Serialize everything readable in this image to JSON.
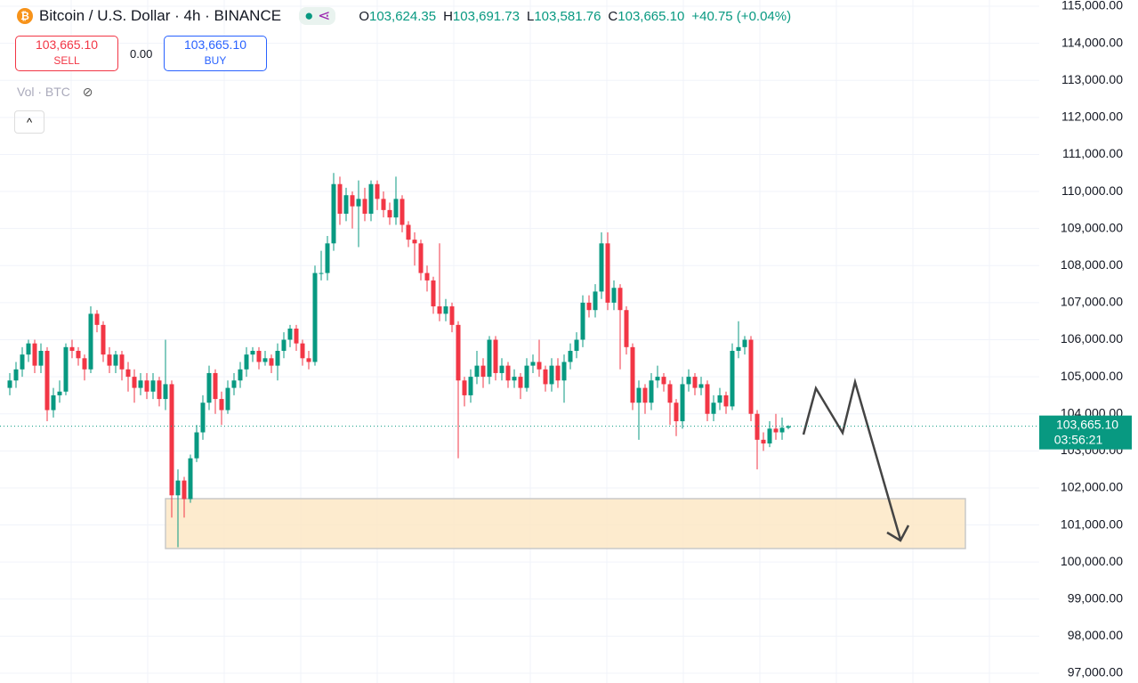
{
  "header": {
    "title": "Bitcoin / U.S. Dollar · 4h · BINANCE",
    "ohlc": [
      {
        "key": "O",
        "value": "103,624.35"
      },
      {
        "key": "H",
        "value": "103,691.73"
      },
      {
        "key": "L",
        "value": "103,581.76"
      },
      {
        "key": "C",
        "value": "103,665.10"
      }
    ],
    "change": "+40.75 (+0.04%)"
  },
  "sell": {
    "price": "103,665.10",
    "label": "SELL"
  },
  "spread": "0.00",
  "buy": {
    "price": "103,665.10",
    "label": "BUY"
  },
  "volume_label": "Vol · BTC",
  "chart_data": {
    "type": "candlestick",
    "up_color": "#089981",
    "down_color": "#f23645",
    "open": [
      104700,
      104900,
      105200,
      105600,
      105900,
      105300,
      105700,
      104100,
      104500,
      104600,
      105800,
      105700,
      105500,
      105200,
      106700,
      106400,
      105600,
      105300,
      105600,
      105200,
      105000,
      104700,
      104900,
      104600,
      104900,
      104400,
      104800,
      101800,
      102200,
      101700,
      102800,
      103500,
      104300,
      105100,
      104400,
      104100,
      104700,
      104900,
      105200,
      105600,
      105700,
      105400,
      105500,
      105300,
      105700,
      106000,
      106300,
      105900,
      105500,
      105400,
      107800,
      107800,
      108600,
      110200,
      109400,
      109900,
      109600,
      109800,
      109400,
      110200,
      109800,
      109500,
      109300,
      109800,
      109100,
      108700,
      108600,
      107800,
      107600,
      106900,
      106700,
      106900,
      106400,
      104900,
      104500,
      105000,
      105300,
      105000,
      106000,
      105100,
      105300,
      104900,
      105000,
      104700,
      105300,
      105400,
      105200,
      104800,
      105300,
      104900,
      105400,
      105700,
      106000,
      107000,
      106800,
      107300,
      108600,
      107000,
      107400,
      106800,
      105800,
      104300,
      104700,
      104300,
      104900,
      105000,
      104800,
      104300,
      103800,
      104800,
      105000,
      104700,
      104800,
      104000,
      104300,
      104500,
      104200,
      105700,
      105800,
      106000,
      104000,
      103300,
      103200,
      103600,
      103500,
      103624.35
    ],
    "high": [
      105100,
      105400,
      105800,
      106000,
      106000,
      105900,
      105800,
      104700,
      104900,
      105900,
      106000,
      105800,
      105600,
      106900,
      106800,
      106500,
      105800,
      105700,
      105700,
      105400,
      105200,
      105100,
      105100,
      105100,
      105000,
      106000,
      104900,
      102500,
      102300,
      102900,
      103700,
      104500,
      105300,
      105200,
      104600,
      104900,
      105100,
      105400,
      105800,
      105800,
      105800,
      105700,
      105600,
      105900,
      106200,
      106400,
      106400,
      106000,
      105700,
      108000,
      108400,
      108800,
      110500,
      110400,
      110100,
      110000,
      110300,
      110100,
      110300,
      110300,
      110000,
      109700,
      110400,
      109900,
      109200,
      108900,
      108700,
      108000,
      107700,
      108600,
      107100,
      107000,
      106500,
      105000,
      105200,
      105700,
      105500,
      106100,
      106100,
      105500,
      105400,
      105200,
      105100,
      105500,
      105600,
      106000,
      105300,
      105500,
      105500,
      105600,
      105900,
      106200,
      107200,
      107200,
      107500,
      108900,
      108900,
      107600,
      107500,
      106900,
      105900,
      104900,
      104800,
      105100,
      105300,
      105100,
      104900,
      104400,
      105000,
      105200,
      105100,
      105000,
      104900,
      104500,
      104700,
      104600,
      105900,
      106500,
      106100,
      106100,
      104100,
      103500,
      103800,
      104000,
      103900,
      103691.73
    ],
    "low": [
      104500,
      104700,
      105000,
      105400,
      105100,
      105100,
      103800,
      103900,
      104300,
      104500,
      105500,
      105300,
      104900,
      105100,
      106200,
      105400,
      105100,
      105100,
      104900,
      104600,
      104300,
      104500,
      104400,
      104400,
      104200,
      104100,
      101200,
      100400,
      101200,
      101600,
      102700,
      103300,
      104100,
      104000,
      103700,
      104000,
      104500,
      104700,
      105000,
      105400,
      105200,
      105300,
      105100,
      104900,
      105500,
      105800,
      105700,
      105300,
      105200,
      105300,
      107600,
      107600,
      108400,
      109100,
      109200,
      109000,
      108500,
      109200,
      109200,
      109500,
      109300,
      109100,
      109100,
      108900,
      108500,
      108000,
      107600,
      107300,
      106700,
      106500,
      106500,
      106200,
      102800,
      104200,
      104300,
      104800,
      104700,
      104800,
      104900,
      104900,
      104700,
      104700,
      104400,
      104600,
      105100,
      105000,
      104600,
      104600,
      104700,
      104300,
      105200,
      105500,
      105800,
      106600,
      106600,
      107100,
      106800,
      106800,
      105200,
      105600,
      104100,
      103300,
      104000,
      104100,
      104700,
      104600,
      103700,
      103400,
      103600,
      104600,
      104500,
      104500,
      103800,
      103800,
      104100,
      104000,
      104100,
      105500,
      105600,
      103800,
      102500,
      103000,
      103100,
      103300,
      103300,
      103581.76
    ],
    "close": [
      104900,
      105200,
      105600,
      105900,
      105300,
      105700,
      104100,
      104500,
      104600,
      105800,
      105700,
      105500,
      105200,
      106700,
      106400,
      105600,
      105300,
      105600,
      105200,
      105000,
      104700,
      104900,
      104600,
      104900,
      104400,
      104800,
      101800,
      102200,
      101700,
      102800,
      103500,
      104300,
      105100,
      104400,
      104100,
      104700,
      104900,
      105200,
      105600,
      105700,
      105400,
      105500,
      105300,
      105700,
      106000,
      106300,
      105900,
      105500,
      105400,
      107800,
      107800,
      108600,
      110200,
      109400,
      109900,
      109600,
      109800,
      109400,
      110200,
      109800,
      109500,
      109300,
      109800,
      109100,
      108700,
      108600,
      107800,
      107600,
      106900,
      106700,
      106900,
      106400,
      104900,
      104500,
      105000,
      105300,
      105000,
      106000,
      105100,
      105300,
      104900,
      105000,
      104700,
      105300,
      105400,
      105200,
      104800,
      105300,
      104900,
      105400,
      105700,
      106000,
      107000,
      106800,
      107300,
      108600,
      107000,
      107400,
      106800,
      105800,
      104300,
      104700,
      104300,
      104900,
      105000,
      104800,
      104300,
      103800,
      104800,
      105000,
      104700,
      104800,
      104000,
      104300,
      104500,
      104200,
      105700,
      105800,
      106000,
      104000,
      103300,
      103200,
      103600,
      103500,
      103624.35,
      103665.1
    ],
    "last_price": {
      "value": 103665.1,
      "label": "103,665.10"
    },
    "countdown": "03:56:21",
    "ylim": [
      97000,
      115000
    ],
    "yticks": [
      {
        "value": 97000,
        "label": "97,000.00"
      },
      {
        "value": 98000,
        "label": "98,000.00"
      },
      {
        "value": 99000,
        "label": "99,000.00"
      },
      {
        "value": 100000,
        "label": "100,000.00"
      },
      {
        "value": 101000,
        "label": "101,000.00"
      },
      {
        "value": 102000,
        "label": "102,000.00"
      },
      {
        "value": 103000,
        "label": "103,000.00"
      },
      {
        "value": 104000,
        "label": "104,000.00"
      },
      {
        "value": 105000,
        "label": "105,000.00"
      },
      {
        "value": 106000,
        "label": "106,000.00"
      },
      {
        "value": 107000,
        "label": "107,000.00"
      },
      {
        "value": 108000,
        "label": "108,000.00"
      },
      {
        "value": 109000,
        "label": "109,000.00"
      },
      {
        "value": 110000,
        "label": "110,000.00"
      },
      {
        "value": 111000,
        "label": "111,000.00"
      },
      {
        "value": 112000,
        "label": "112,000.00"
      },
      {
        "value": 113000,
        "label": "113,000.00"
      },
      {
        "value": 114000,
        "label": "114,000.00"
      },
      {
        "value": 115000,
        "label": "115,000.00"
      }
    ],
    "grid": true
  }
}
